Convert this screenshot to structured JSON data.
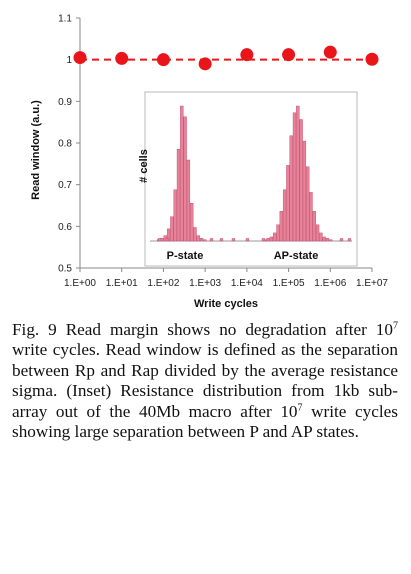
{
  "chart_data": {
    "type": "scatter",
    "xlabel": "Write cycles",
    "ylabel": "Read window (a.u.)",
    "x_ticks": [
      "1.E+00",
      "1.E+01",
      "1.E+02",
      "1.E+03",
      "1.E+04",
      "1.E+05",
      "1.E+06",
      "1.E+07"
    ],
    "y_ticks": [
      "0.5",
      "0.6",
      "0.7",
      "0.8",
      "0.9",
      "1",
      "1.1"
    ],
    "ylim": [
      0.5,
      1.1
    ],
    "xscale": "log",
    "x": [
      1,
      10,
      100,
      1000,
      10000,
      100000,
      1000000,
      10000000
    ],
    "y": [
      1.005,
      1.003,
      1.0,
      0.99,
      1.012,
      1.012,
      1.018,
      1.001
    ],
    "reference_line": 1.0,
    "grid": false,
    "point_color": "#e8161b",
    "inset": {
      "type": "histogram",
      "ylabel": "# cells",
      "labels": [
        "P-state",
        "AP-state"
      ],
      "bar_color": "#e8829a",
      "p_state_counts": [
        1,
        2,
        4,
        9,
        18,
        38,
        68,
        100,
        92,
        60,
        28,
        10,
        4,
        2,
        1
      ],
      "ap_state_counts": [
        1,
        2,
        3,
        6,
        12,
        22,
        38,
        56,
        78,
        95,
        100,
        90,
        74,
        55,
        36,
        22,
        12,
        6,
        3,
        2,
        1
      ]
    }
  },
  "caption": {
    "part1": "Fig. 9 Read margin shows no degradation after 10",
    "sup1": "7",
    "part2": " write cycles. Read window is defined as the separation between Rp and Rap divided by the average resistance sigma. (Inset) Resistance distribution from 1kb sub-array out of the 40Mb macro after 10",
    "sup2": "7",
    "part3": " write cycles showing large separation between P and AP states."
  }
}
